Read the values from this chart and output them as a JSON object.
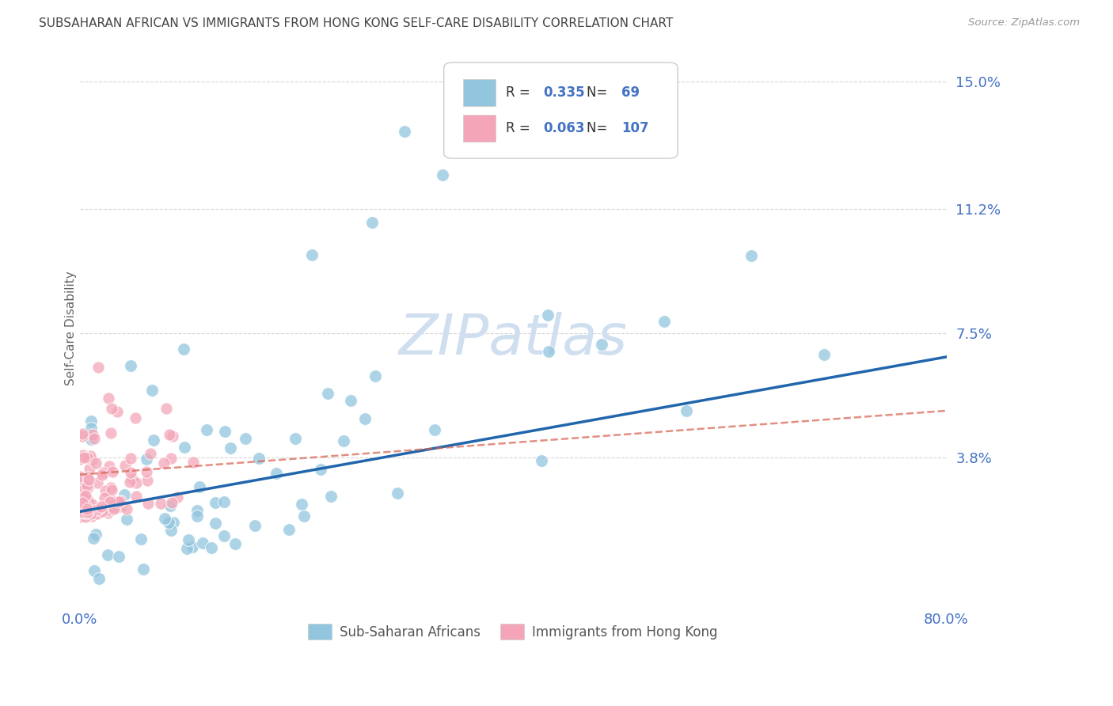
{
  "title": "SUBSAHARAN AFRICAN VS IMMIGRANTS FROM HONG KONG SELF-CARE DISABILITY CORRELATION CHART",
  "source": "Source: ZipAtlas.com",
  "ylabel": "Self-Care Disability",
  "xlim": [
    0.0,
    0.8
  ],
  "ylim": [
    -0.005,
    0.158
  ],
  "yticks": [
    0.038,
    0.075,
    0.112,
    0.15
  ],
  "ytick_labels": [
    "3.8%",
    "7.5%",
    "11.2%",
    "15.0%"
  ],
  "xticks": [
    0.0,
    0.16,
    0.32,
    0.48,
    0.64,
    0.8
  ],
  "xtick_labels": [
    "0.0%",
    "",
    "",
    "",
    "",
    "80.0%"
  ],
  "blue_R": 0.335,
  "blue_N": 69,
  "pink_R": 0.063,
  "pink_N": 107,
  "blue_color": "#92c5de",
  "pink_color": "#f4a6b8",
  "trend_blue": "#2166ac",
  "trend_pink": "#d6604d",
  "background_color": "#ffffff",
  "grid_color": "#cccccc",
  "title_color": "#444444",
  "axis_label_color": "#4472c4",
  "watermark_color": "#d0dff0",
  "blue_trend_start_y": 0.022,
  "blue_trend_end_y": 0.068,
  "pink_trend_start_y": 0.033,
  "pink_trend_end_y": 0.052
}
